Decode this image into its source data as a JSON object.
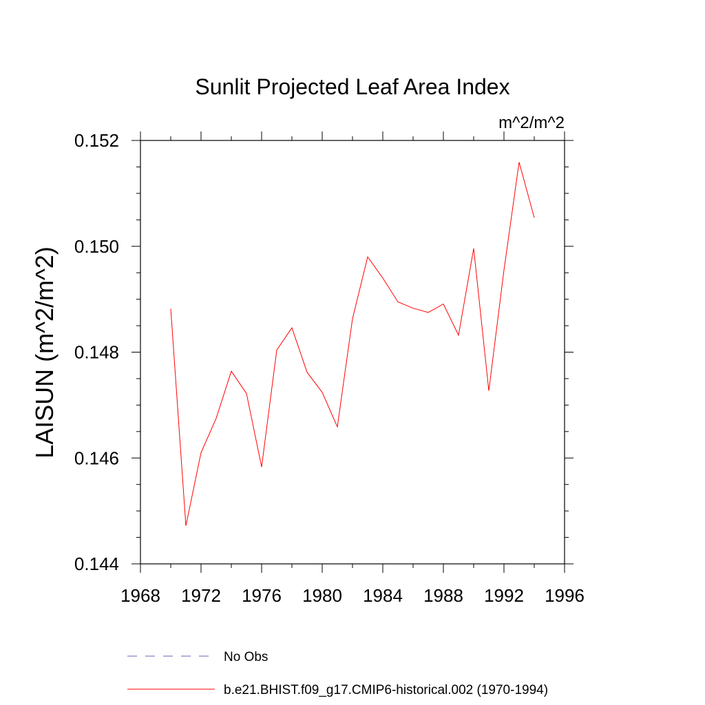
{
  "chart_data": {
    "type": "line",
    "title": "Sunlit Projected Leaf Area Index",
    "units": "m^2/m^2",
    "ylabel": "LAISUN  (m^2/m^2)",
    "xlabel": "",
    "xlim": [
      1968,
      1996
    ],
    "ylim": [
      0.144,
      0.152
    ],
    "xticks": [
      "1968",
      "1972",
      "1976",
      "1980",
      "1984",
      "1988",
      "1992",
      "1996"
    ],
    "yticks": [
      "0.144",
      "0.146",
      "0.148",
      "0.150",
      "0.152"
    ],
    "x_tick_values": [
      1968,
      1972,
      1976,
      1980,
      1984,
      1988,
      1992,
      1996
    ],
    "y_tick_values": [
      0.144,
      0.146,
      0.148,
      0.15,
      0.152
    ],
    "x_minor_step": 2,
    "y_minor_step": 0.0005,
    "grid": false,
    "legend_position": "bottom",
    "series": [
      {
        "name": "No Obs",
        "color": "#6b5fb5",
        "style": "dashed",
        "x": [],
        "values": []
      },
      {
        "name": "b.e21.BHIST.f09_g17.CMIP6-historical.002 (1970-1994)",
        "color": "#ff0000",
        "style": "solid",
        "x": [
          1970,
          1971,
          1972,
          1973,
          1974,
          1975,
          1976,
          1977,
          1978,
          1979,
          1980,
          1981,
          1982,
          1983,
          1984,
          1985,
          1986,
          1987,
          1988,
          1989,
          1990,
          1991,
          1992,
          1993,
          1994
        ],
        "values": [
          0.14882,
          0.14472,
          0.1461,
          0.14675,
          0.14764,
          0.14722,
          0.14583,
          0.14804,
          0.14846,
          0.14762,
          0.14724,
          0.14659,
          0.14863,
          0.1498,
          0.1494,
          0.14895,
          0.14883,
          0.14875,
          0.14891,
          0.14832,
          0.14996,
          0.14727,
          0.14955,
          0.15159,
          0.15054
        ]
      }
    ]
  }
}
